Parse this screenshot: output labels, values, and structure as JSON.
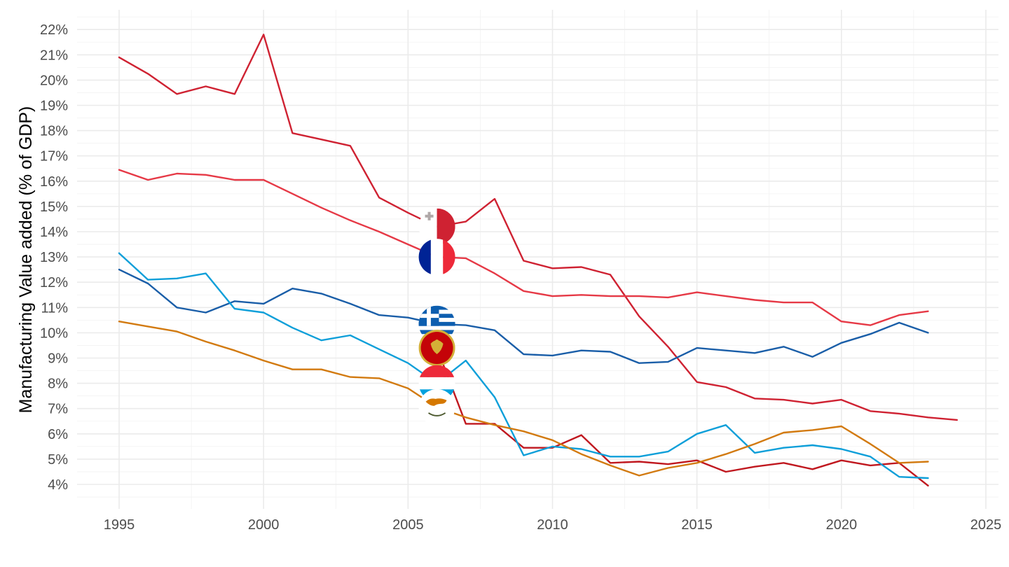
{
  "chart_data": {
    "type": "line",
    "title": "",
    "xlabel": "",
    "ylabel": "Manufacturing Value added (% of GDP)",
    "xlim": [
      1995,
      2025
    ],
    "ylim": [
      3.3,
      22.7
    ],
    "x_ticks": [
      1995,
      2000,
      2005,
      2010,
      2015,
      2020,
      2025
    ],
    "x_tick_labels": [
      "1995",
      "2000",
      "2005",
      "2010",
      "2015",
      "2020",
      "2025"
    ],
    "y_ticks": [
      4,
      5,
      6,
      7,
      8,
      9,
      10,
      11,
      12,
      13,
      14,
      15,
      16,
      17,
      18,
      19,
      20,
      21,
      22
    ],
    "y_tick_labels": [
      "4%",
      "5%",
      "6%",
      "7%",
      "8%",
      "9%",
      "10%",
      "11%",
      "12%",
      "13%",
      "14%",
      "15%",
      "16%",
      "17%",
      "18%",
      "19%",
      "20%",
      "21%",
      "22%"
    ],
    "grid": true,
    "legend": "none",
    "series": [
      {
        "flag": "malta",
        "color": "#cf2232",
        "x": [
          1995,
          1996,
          1997,
          1998,
          1999,
          2000,
          2001,
          2002,
          2003,
          2004,
          2005,
          2006,
          2007,
          2008,
          2009,
          2010,
          2011,
          2012,
          2013,
          2014,
          2015,
          2016,
          2017,
          2018,
          2019,
          2020,
          2021,
          2022,
          2023,
          2024
        ],
        "y": [
          20.9,
          20.25,
          19.45,
          19.75,
          19.45,
          21.8,
          17.9,
          17.65,
          17.4,
          15.35,
          14.75,
          14.2,
          14.4,
          15.3,
          12.85,
          12.55,
          12.6,
          12.3,
          10.65,
          9.45,
          8.05,
          7.85,
          7.4,
          7.35,
          7.2,
          7.35,
          6.9,
          6.8,
          6.65,
          6.55
        ]
      },
      {
        "flag": "france",
        "color": "#e63946",
        "x": [
          1995,
          1996,
          1997,
          1998,
          1999,
          2000,
          2001,
          2002,
          2003,
          2004,
          2005,
          2006,
          2007,
          2008,
          2009,
          2010,
          2011,
          2012,
          2013,
          2014,
          2015,
          2016,
          2017,
          2018,
          2019,
          2020,
          2021,
          2022,
          2023
        ],
        "y": [
          16.45,
          16.05,
          16.3,
          16.25,
          16.05,
          16.05,
          15.5,
          14.95,
          14.45,
          14.0,
          13.5,
          13.0,
          12.95,
          12.35,
          11.65,
          11.45,
          11.5,
          11.45,
          11.45,
          11.4,
          11.6,
          11.45,
          11.3,
          11.2,
          11.2,
          10.45,
          10.3,
          10.7,
          10.85
        ]
      },
      {
        "flag": "greece",
        "color": "#1a5ea8",
        "x": [
          1995,
          1996,
          1997,
          1998,
          1999,
          2000,
          2001,
          2002,
          2003,
          2004,
          2005,
          2006,
          2007,
          2008,
          2009,
          2010,
          2011,
          2012,
          2013,
          2014,
          2015,
          2016,
          2017,
          2018,
          2019,
          2020,
          2021,
          2022,
          2023
        ],
        "y": [
          12.5,
          11.95,
          11.0,
          10.8,
          11.25,
          11.15,
          11.75,
          11.55,
          11.15,
          10.7,
          10.6,
          10.35,
          10.3,
          10.1,
          9.15,
          9.1,
          9.3,
          9.25,
          8.8,
          8.85,
          9.4,
          9.3,
          9.2,
          9.45,
          9.05,
          9.6,
          9.95,
          10.4,
          10.0
        ]
      },
      {
        "flag": "montenegro",
        "color": "#c0181f",
        "x": [
          2006,
          2007,
          2008,
          2009,
          2010,
          2011,
          2012,
          2013,
          2014,
          2015,
          2016,
          2017,
          2018,
          2019,
          2020,
          2021,
          2022,
          2023
        ],
        "y": [
          9.4,
          6.4,
          6.4,
          5.45,
          5.45,
          5.95,
          4.85,
          4.9,
          4.8,
          4.95,
          4.5,
          4.7,
          4.85,
          4.6,
          4.95,
          4.75,
          4.85,
          3.95
        ]
      },
      {
        "flag": "luxembourg",
        "color": "#0e9fd9",
        "x": [
          1995,
          1996,
          1997,
          1998,
          1999,
          2000,
          2001,
          2002,
          2003,
          2004,
          2005,
          2006,
          2007,
          2008,
          2009,
          2010,
          2011,
          2012,
          2013,
          2014,
          2015,
          2016,
          2017,
          2018,
          2019,
          2020,
          2021,
          2022,
          2023
        ],
        "y": [
          13.15,
          12.1,
          12.15,
          12.35,
          10.95,
          10.8,
          10.2,
          9.7,
          9.9,
          9.35,
          8.8,
          8.0,
          8.9,
          7.45,
          5.15,
          5.5,
          5.4,
          5.1,
          5.1,
          5.3,
          6.0,
          6.35,
          5.25,
          5.45,
          5.55,
          5.4,
          5.1,
          4.3,
          4.25
        ]
      },
      {
        "flag": "cyprus",
        "color": "#d27a10",
        "x": [
          1995,
          1996,
          1997,
          1998,
          1999,
          2000,
          2001,
          2002,
          2003,
          2004,
          2005,
          2006,
          2007,
          2008,
          2009,
          2010,
          2011,
          2012,
          2013,
          2014,
          2015,
          2016,
          2017,
          2018,
          2019,
          2020,
          2021,
          2022,
          2023
        ],
        "y": [
          10.45,
          10.25,
          10.05,
          9.65,
          9.3,
          8.9,
          8.55,
          8.55,
          8.25,
          8.2,
          7.8,
          7.05,
          6.65,
          6.35,
          6.1,
          5.75,
          5.2,
          4.75,
          4.35,
          4.65,
          4.85,
          5.2,
          5.6,
          6.05,
          6.15,
          6.3,
          5.6,
          4.85,
          4.9
        ]
      }
    ]
  }
}
